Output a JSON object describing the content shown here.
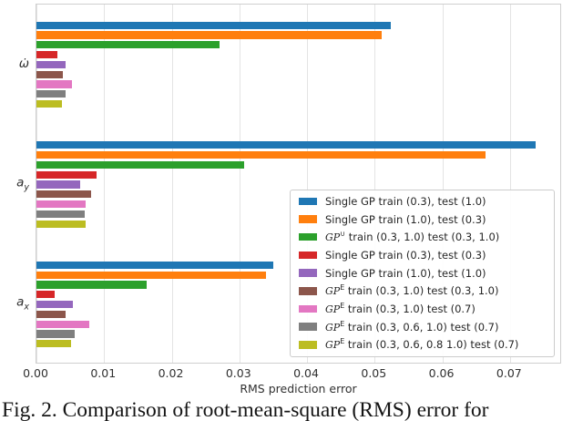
{
  "figure": {
    "caption": "Fig. 2. Comparison of root-mean-square (RMS) error for"
  },
  "chart_data": {
    "type": "bar",
    "orientation": "horizontal",
    "title": "",
    "xlabel": "RMS prediction error",
    "ylabel": "",
    "grid": "vertical-on",
    "legend_position": "lower right",
    "xlim": [
      0,
      0.0777
    ],
    "xticks": [
      0,
      0.01,
      0.02,
      0.03,
      0.04,
      0.05,
      0.06,
      0.07
    ],
    "xtick_labels": [
      "0.00",
      "0.01",
      "0.02",
      "0.03",
      "0.04",
      "0.05",
      "0.06",
      "0.07"
    ],
    "categories": [
      {
        "main": "ω̇",
        "sub": ""
      },
      {
        "main": "a",
        "sub": "y"
      },
      {
        "main": "a",
        "sub": "x"
      }
    ],
    "series": [
      {
        "name": "Single GP train (0.3), test (1.0)",
        "color": "#1f77b4",
        "dashed": false,
        "legend_label": {
          "plain": "Single GP train (0.3), test (1.0)"
        },
        "values": [
          0.0524,
          0.0738,
          0.035
        ]
      },
      {
        "name": "Single GP train (1.0), test (0.3)",
        "color": "#ff7f0e",
        "dashed": false,
        "legend_label": {
          "plain": "Single GP train (1.0), test (0.3)"
        },
        "values": [
          0.0511,
          0.0664,
          0.0339
        ]
      },
      {
        "name": "GP^∪ train (0.3, 1.0) test (0.3, 1.0)",
        "color": "#2ca02c",
        "dashed": true,
        "legend_label": {
          "mathcal": "GP",
          "sup": "∪",
          "rest": " train (0.3, 1.0) test (0.3, 1.0)"
        },
        "values": [
          0.0271,
          0.0307,
          0.0163
        ]
      },
      {
        "name": "Single GP train (0.3), test (0.3)",
        "color": "#d62728",
        "dashed": false,
        "legend_label": {
          "plain": "Single GP train (0.3), test (0.3)"
        },
        "values": [
          0.0031,
          0.0089,
          0.0027
        ]
      },
      {
        "name": "Single GP train (1.0), test (1.0)",
        "color": "#9467bd",
        "dashed": true,
        "legend_label": {
          "plain": "Single GP train (1.0), test (1.0)"
        },
        "values": [
          0.0043,
          0.0065,
          0.0054
        ]
      },
      {
        "name": "GP^E train (0.3, 1.0) test (0.3, 1.0)",
        "color": "#8c564b",
        "dashed": true,
        "legend_label": {
          "mathcal": "GP",
          "sup": "E",
          "rest": " train (0.3, 1.0) test (0.3, 1.0)"
        },
        "values": [
          0.0039,
          0.0081,
          0.0043
        ]
      },
      {
        "name": "GP^E train (0.3, 1.0) test (0.7)",
        "color": "#e377c2",
        "dashed": true,
        "legend_label": {
          "mathcal": "GP",
          "sup": "E",
          "rest": " train (0.3, 1.0) test (0.7)"
        },
        "values": [
          0.0052,
          0.0073,
          0.0078
        ]
      },
      {
        "name": "GP^E train (0.3, 0.6, 1.0) test (0.7)",
        "color": "#7f7f7f",
        "dashed": true,
        "legend_label": {
          "mathcal": "GP",
          "sup": "E",
          "rest": " train (0.3, 0.6, 1.0) test (0.7)"
        },
        "values": [
          0.0043,
          0.0072,
          0.0057
        ]
      },
      {
        "name": "GP^E train (0.3, 0.6, 0.8 1.0) test (0.7)",
        "color": "#bcbd22",
        "dashed": true,
        "legend_label": {
          "mathcal": "GP",
          "sup": "E",
          "rest": " train (0.3, 0.6, 0.8 1.0) test (0.7)"
        },
        "values": [
          0.0038,
          0.0073,
          0.0051
        ]
      }
    ]
  }
}
